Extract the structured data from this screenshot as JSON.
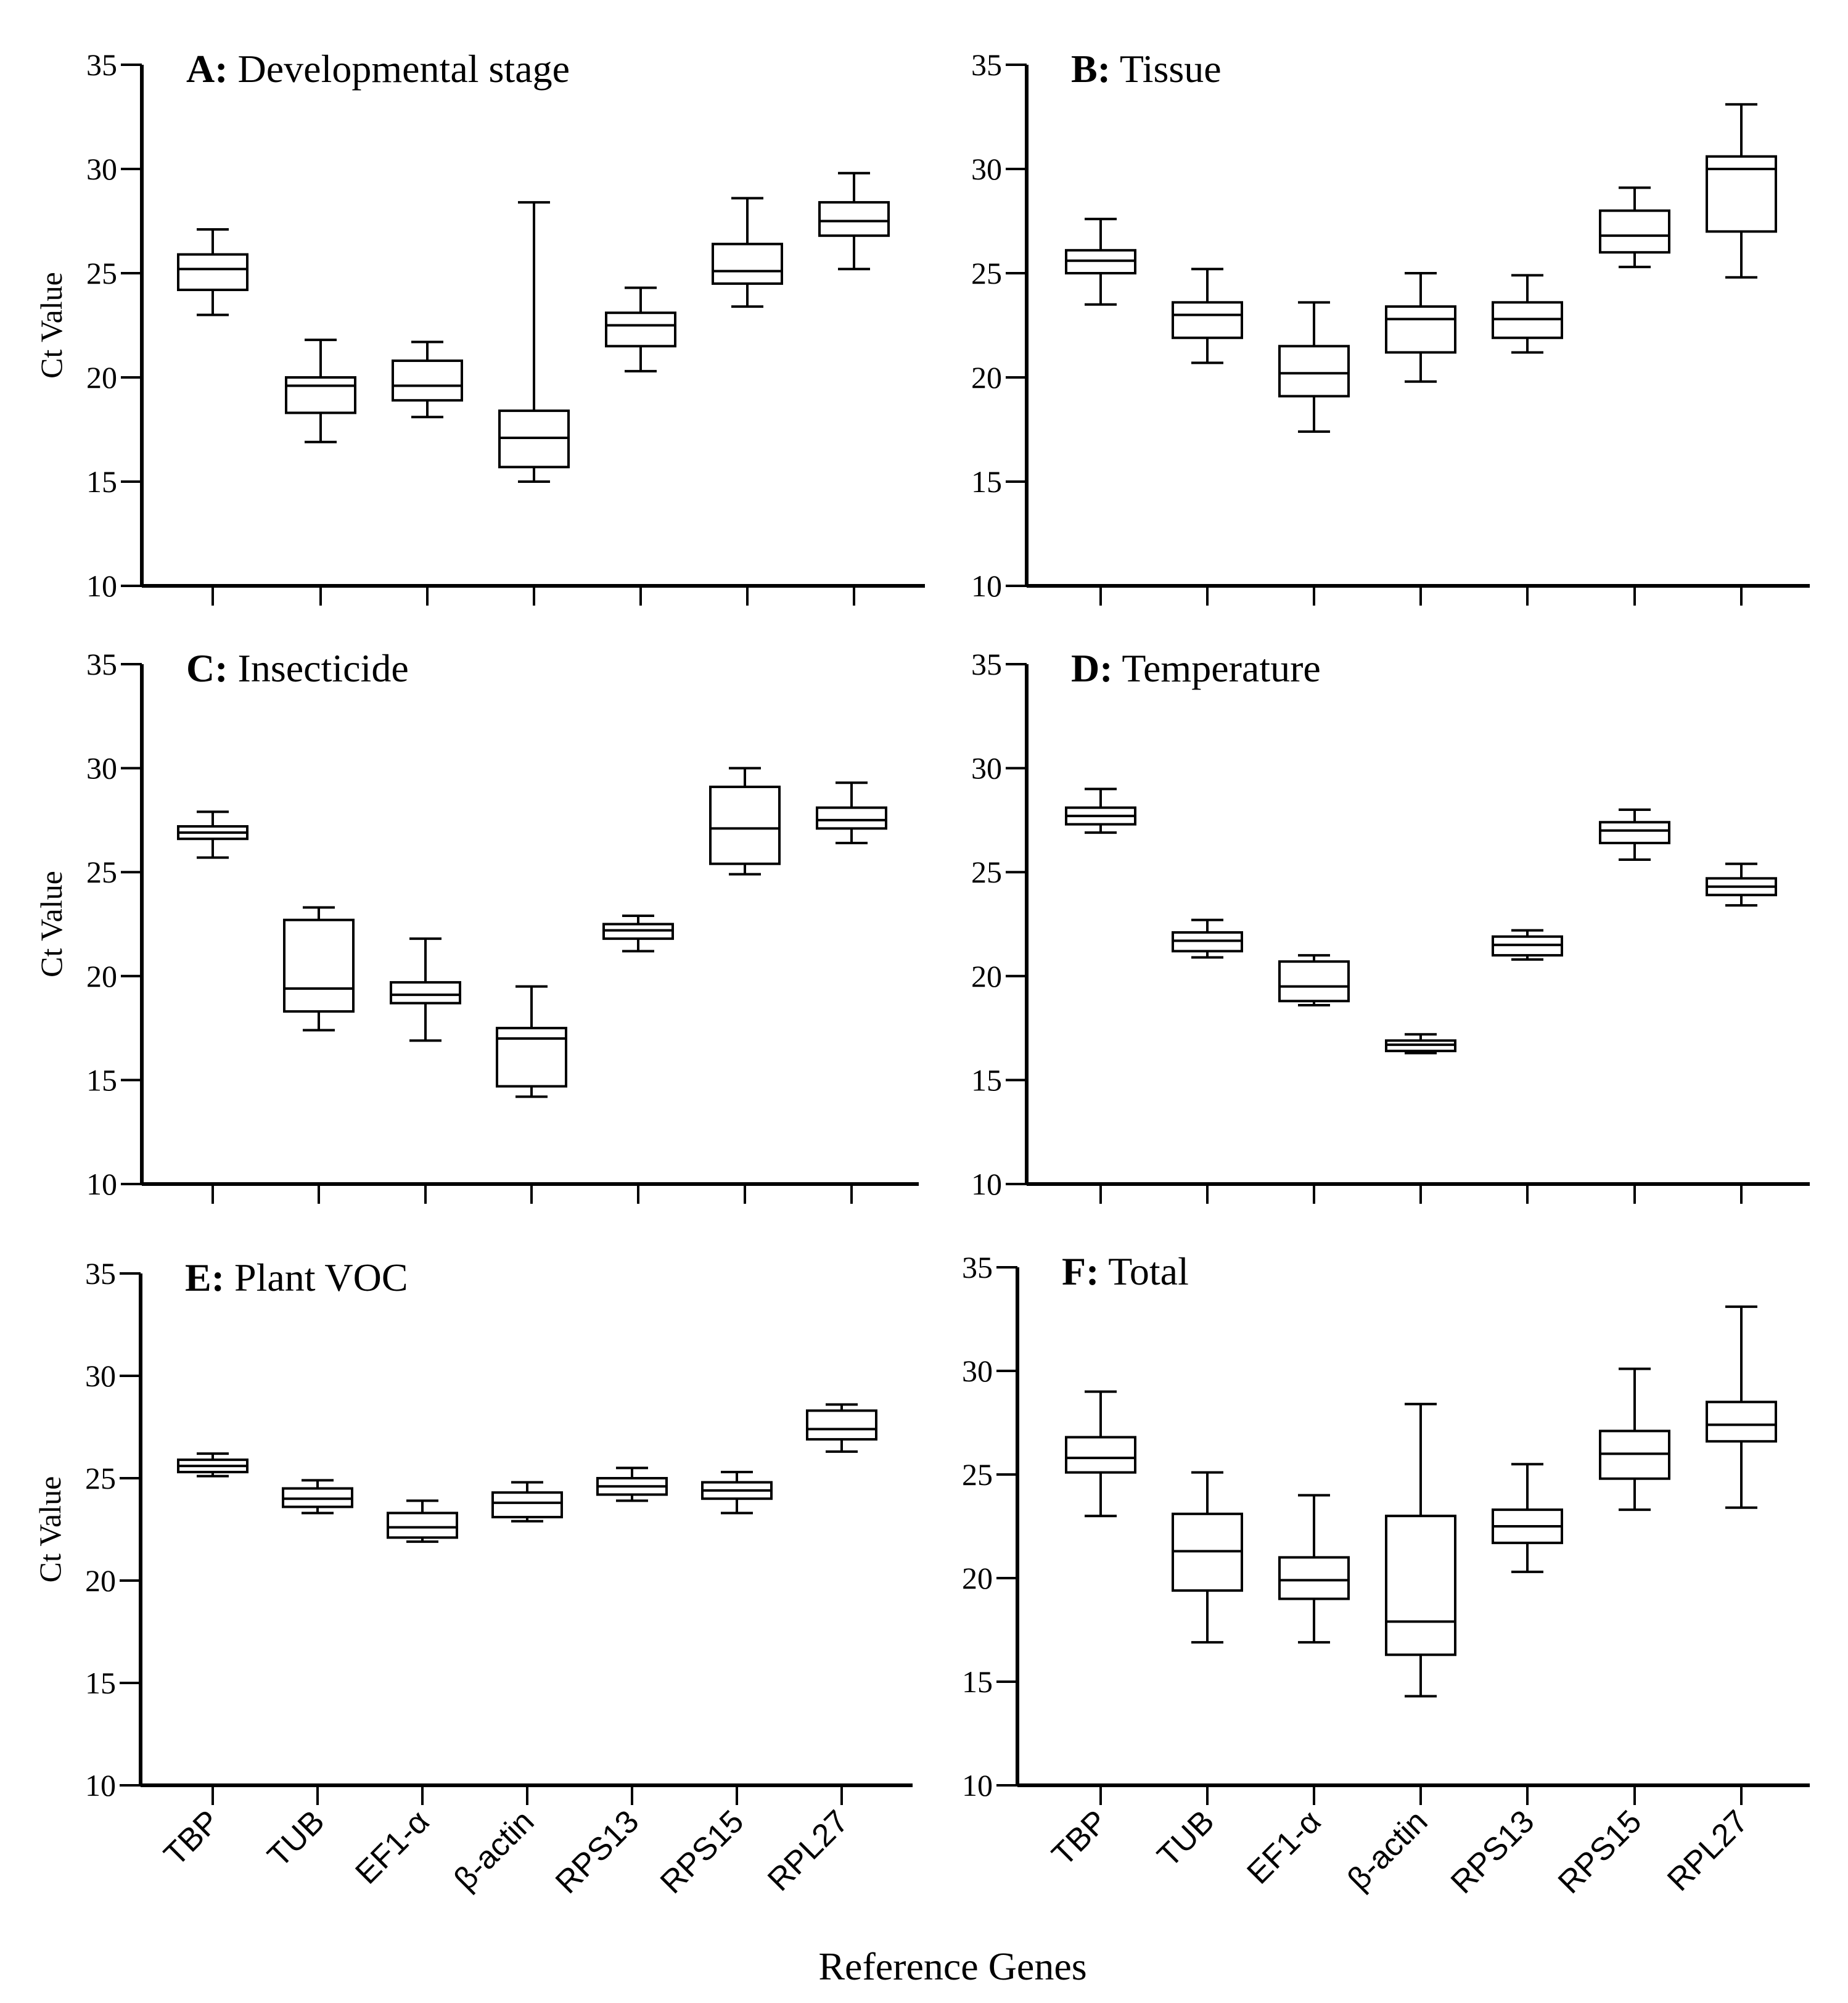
{
  "figure": {
    "xlabel": "Reference Genes"
  },
  "chart_data": [
    {
      "type": "boxplot",
      "letter": "A:",
      "title": "Developmental stage",
      "ylabel": "Ct  Value",
      "ylim": [
        10,
        35
      ],
      "yticks": [
        10,
        15,
        20,
        25,
        30,
        35
      ],
      "categories": [
        "TBP",
        "TUB",
        "EF1-α",
        "β-actin",
        "RPS13",
        "RPS15",
        "RPL27"
      ],
      "boxes": [
        {
          "min": 23.0,
          "q1": 24.2,
          "median": 25.2,
          "q3": 25.9,
          "max": 27.1
        },
        {
          "min": 16.9,
          "q1": 18.3,
          "median": 19.6,
          "q3": 20.0,
          "max": 21.8
        },
        {
          "min": 18.1,
          "q1": 18.9,
          "median": 19.6,
          "q3": 20.8,
          "max": 21.7
        },
        {
          "min": 15.0,
          "q1": 15.7,
          "median": 17.1,
          "q3": 18.4,
          "max": 28.4
        },
        {
          "min": 20.3,
          "q1": 21.5,
          "median": 22.5,
          "q3": 23.1,
          "max": 24.3
        },
        {
          "min": 23.4,
          "q1": 24.5,
          "median": 25.1,
          "q3": 26.4,
          "max": 28.6
        },
        {
          "min": 25.2,
          "q1": 26.8,
          "median": 27.5,
          "q3": 28.4,
          "max": 29.8
        }
      ]
    },
    {
      "type": "boxplot",
      "letter": "B:",
      "title": "Tissue",
      "ylabel": "",
      "ylim": [
        10,
        35
      ],
      "yticks": [
        10,
        15,
        20,
        25,
        30,
        35
      ],
      "categories": [
        "TBP",
        "TUB",
        "EF1-α",
        "β-actin",
        "RPS13",
        "RPS15",
        "RPL27"
      ],
      "boxes": [
        {
          "min": 23.5,
          "q1": 25.0,
          "median": 25.6,
          "q3": 26.1,
          "max": 27.6
        },
        {
          "min": 20.7,
          "q1": 21.9,
          "median": 23.0,
          "q3": 23.6,
          "max": 25.2
        },
        {
          "min": 17.4,
          "q1": 19.1,
          "median": 20.2,
          "q3": 21.5,
          "max": 23.6
        },
        {
          "min": 19.8,
          "q1": 21.2,
          "median": 22.8,
          "q3": 23.4,
          "max": 25.0
        },
        {
          "min": 21.2,
          "q1": 21.9,
          "median": 22.8,
          "q3": 23.6,
          "max": 24.9
        },
        {
          "min": 25.3,
          "q1": 26.0,
          "median": 26.8,
          "q3": 28.0,
          "max": 29.1
        },
        {
          "min": 24.8,
          "q1": 27.0,
          "median": 30.0,
          "q3": 30.6,
          "max": 33.1
        }
      ]
    },
    {
      "type": "boxplot",
      "letter": "C:",
      "title": "Insecticide",
      "ylabel": "Ct  Value",
      "ylim": [
        10,
        35
      ],
      "yticks": [
        10,
        15,
        20,
        25,
        30,
        35
      ],
      "categories": [
        "TBP",
        "TUB",
        "EF1-α",
        "β-actin",
        "RPS13",
        "RPS15",
        "RPL27"
      ],
      "boxes": [
        {
          "min": 25.7,
          "q1": 26.6,
          "median": 26.9,
          "q3": 27.2,
          "max": 27.9
        },
        {
          "min": 17.4,
          "q1": 18.3,
          "median": 19.4,
          "q3": 22.7,
          "max": 23.3
        },
        {
          "min": 16.9,
          "q1": 18.7,
          "median": 19.1,
          "q3": 19.7,
          "max": 21.8
        },
        {
          "min": 14.2,
          "q1": 14.7,
          "median": 17.0,
          "q3": 17.5,
          "max": 19.5
        },
        {
          "min": 21.2,
          "q1": 21.8,
          "median": 22.2,
          "q3": 22.5,
          "max": 22.9
        },
        {
          "min": 24.9,
          "q1": 25.4,
          "median": 27.1,
          "q3": 29.1,
          "max": 30.0
        },
        {
          "min": 26.4,
          "q1": 27.1,
          "median": 27.5,
          "q3": 28.1,
          "max": 29.3
        }
      ]
    },
    {
      "type": "boxplot",
      "letter": "D:",
      "title": "Temperature",
      "ylabel": "",
      "ylim": [
        10,
        35
      ],
      "yticks": [
        10,
        15,
        20,
        25,
        30,
        35
      ],
      "categories": [
        "TBP",
        "TUB",
        "EF1-α",
        "β-actin",
        "RPS13",
        "RPS15",
        "RPL27"
      ],
      "boxes": [
        {
          "min": 26.9,
          "q1": 27.3,
          "median": 27.7,
          "q3": 28.1,
          "max": 29.0
        },
        {
          "min": 20.9,
          "q1": 21.2,
          "median": 21.7,
          "q3": 22.1,
          "max": 22.7
        },
        {
          "min": 18.6,
          "q1": 18.8,
          "median": 19.5,
          "q3": 20.7,
          "max": 21.0
        },
        {
          "min": 16.3,
          "q1": 16.4,
          "median": 16.7,
          "q3": 16.9,
          "max": 17.2
        },
        {
          "min": 20.8,
          "q1": 21.0,
          "median": 21.5,
          "q3": 21.9,
          "max": 22.2
        },
        {
          "min": 25.6,
          "q1": 26.4,
          "median": 27.0,
          "q3": 27.4,
          "max": 28.0
        },
        {
          "min": 23.4,
          "q1": 23.9,
          "median": 24.3,
          "q3": 24.7,
          "max": 25.4
        }
      ]
    },
    {
      "type": "boxplot",
      "letter": "E:",
      "title": "Plant VOC",
      "ylabel": "Ct  Value",
      "ylim": [
        10,
        35
      ],
      "yticks": [
        10,
        15,
        20,
        25,
        30,
        35
      ],
      "categories": [
        "TBP",
        "TUB",
        "EF1-α",
        "β-actin",
        "RPS13",
        "RPS15",
        "RPL27"
      ],
      "boxes": [
        {
          "min": 25.1,
          "q1": 25.3,
          "median": 25.6,
          "q3": 25.9,
          "max": 26.2
        },
        {
          "min": 23.3,
          "q1": 23.6,
          "median": 24.0,
          "q3": 24.5,
          "max": 24.9
        },
        {
          "min": 21.9,
          "q1": 22.1,
          "median": 22.6,
          "q3": 23.3,
          "max": 23.9
        },
        {
          "min": 22.9,
          "q1": 23.1,
          "median": 23.8,
          "q3": 24.3,
          "max": 24.8
        },
        {
          "min": 23.9,
          "q1": 24.2,
          "median": 24.6,
          "q3": 25.0,
          "max": 25.5
        },
        {
          "min": 23.3,
          "q1": 24.0,
          "median": 24.4,
          "q3": 24.8,
          "max": 25.3
        },
        {
          "min": 26.3,
          "q1": 26.9,
          "median": 27.4,
          "q3": 28.3,
          "max": 28.6
        }
      ]
    },
    {
      "type": "boxplot",
      "letter": "F:",
      "title": "Total",
      "ylabel": "",
      "ylim": [
        10,
        35
      ],
      "yticks": [
        10,
        15,
        20,
        25,
        30,
        35
      ],
      "categories": [
        "TBP",
        "TUB",
        "EF1-α",
        "β-actin",
        "RPS13",
        "RPS15",
        "RPL27"
      ],
      "boxes": [
        {
          "min": 23.0,
          "q1": 25.1,
          "median": 25.8,
          "q3": 26.8,
          "max": 29.0
        },
        {
          "min": 16.9,
          "q1": 19.4,
          "median": 21.3,
          "q3": 23.1,
          "max": 25.1
        },
        {
          "min": 16.9,
          "q1": 19.0,
          "median": 19.9,
          "q3": 21.0,
          "max": 24.0
        },
        {
          "min": 14.3,
          "q1": 16.3,
          "median": 17.9,
          "q3": 23.0,
          "max": 28.4
        },
        {
          "min": 20.3,
          "q1": 21.7,
          "median": 22.5,
          "q3": 23.3,
          "max": 25.5
        },
        {
          "min": 23.3,
          "q1": 24.8,
          "median": 26.0,
          "q3": 27.1,
          "max": 30.1
        },
        {
          "min": 23.4,
          "q1": 26.6,
          "median": 27.4,
          "q3": 28.5,
          "max": 33.1
        }
      ]
    }
  ]
}
